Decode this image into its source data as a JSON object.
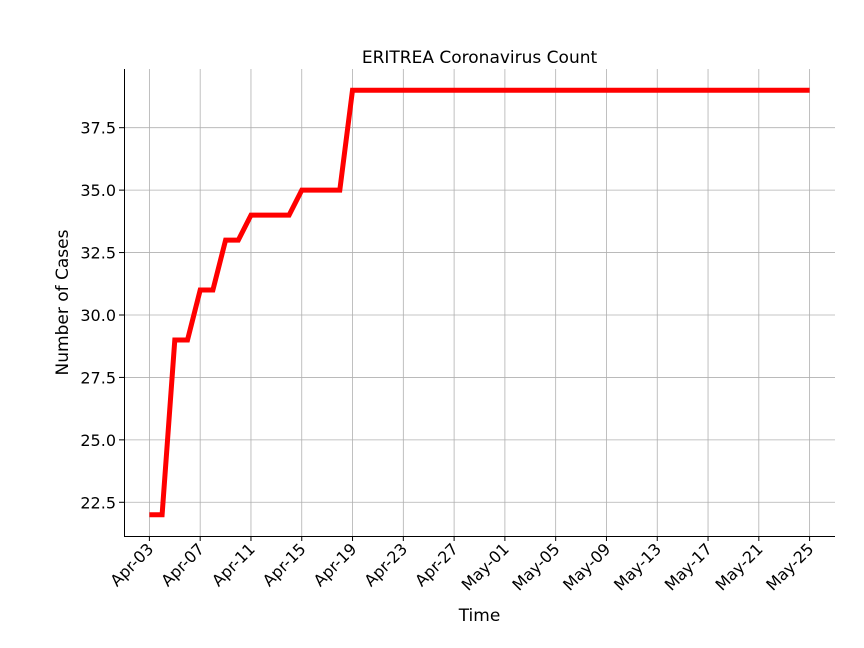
{
  "chart_data": {
    "type": "line",
    "title": "ERITREA Coronavirus Count",
    "xlabel": "Time",
    "ylabel": "Number of Cases",
    "x_ticks": [
      "Apr-03",
      "Apr-07",
      "Apr-11",
      "Apr-15",
      "Apr-19",
      "Apr-23",
      "Apr-27",
      "May-01",
      "May-05",
      "May-09",
      "May-13",
      "May-17",
      "May-21",
      "May-25"
    ],
    "y_ticks": [
      "22.5",
      "25.0",
      "27.5",
      "30.0",
      "32.5",
      "35.0",
      "37.5"
    ],
    "y_tick_values": [
      22.5,
      25.0,
      27.5,
      30.0,
      32.5,
      35.0,
      37.5
    ],
    "xlim": [
      "2020-04-01",
      "2020-05-27"
    ],
    "ylim": [
      21.15,
      39.85
    ],
    "grid": true,
    "series": [
      {
        "color": "#ff0000",
        "x": [
          "2020-04-03",
          "2020-04-04",
          "2020-04-05",
          "2020-04-06",
          "2020-04-07",
          "2020-04-08",
          "2020-04-09",
          "2020-04-10",
          "2020-04-11",
          "2020-04-12",
          "2020-04-13",
          "2020-04-14",
          "2020-04-15",
          "2020-04-16",
          "2020-04-17",
          "2020-04-18",
          "2020-04-19",
          "2020-05-25"
        ],
        "y": [
          22,
          22,
          29,
          29,
          31,
          31,
          33,
          33,
          34,
          34,
          34,
          34,
          35,
          35,
          35,
          35,
          39,
          39
        ]
      }
    ]
  }
}
